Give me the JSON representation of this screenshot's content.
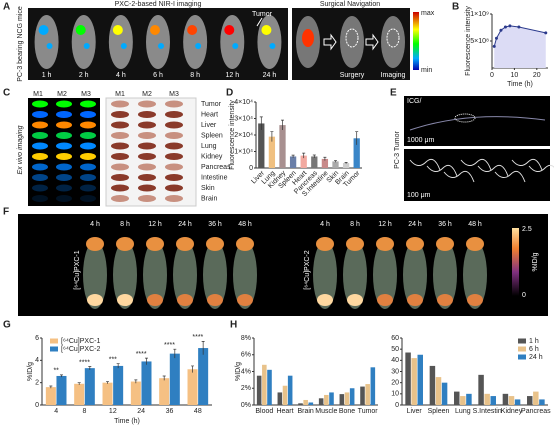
{
  "figure": {
    "panel_labels": [
      "A",
      "B",
      "C",
      "D",
      "E",
      "F",
      "G",
      "H"
    ],
    "a": {
      "title": "PXC-2-based NIR-I imaging",
      "side_label": "PC-3 bearing NCG mice",
      "times": [
        "1 h",
        "2 h",
        "4 h",
        "6 h",
        "8 h",
        "12 h",
        "24 h"
      ],
      "tumor": "Tumor",
      "nav_title": "Surgical Navigation",
      "nav_steps": [
        "Surgery",
        "Imaging"
      ],
      "scale": [
        "max",
        "min"
      ]
    },
    "c": {
      "side_label": "Ex vivo imaging",
      "mice": [
        "M1",
        "M2",
        "M3"
      ],
      "organs": [
        "Tumor",
        "Heart",
        "Liver",
        "Spleen",
        "Lung",
        "Kidney",
        "Pancreas",
        "Intestine",
        "Skin",
        "Brain"
      ]
    },
    "e": {
      "stain": "ICG/",
      "side_label": "PC-3 Tumor",
      "scales": [
        "1000 μm",
        "100 μm"
      ]
    },
    "f": {
      "probes": [
        "[⁶⁴Cu]PXC-1",
        "[⁶⁴Cu]PXC-2"
      ],
      "times": [
        "4 h",
        "8 h",
        "12 h",
        "24 h",
        "36 h",
        "48 h"
      ],
      "scale_max": "2.5",
      "scale_min": "0",
      "scale_unit": "%ID/g"
    }
  },
  "chart_data": [
    {
      "type": "line",
      "y_label": "Fluorescence intensity",
      "x_label": "Time (h)",
      "x": [
        1,
        2,
        4,
        6,
        8,
        12,
        24
      ],
      "values": [
        400000000,
        550000000,
        700000000,
        760000000,
        780000000,
        760000000,
        650000000
      ],
      "color": "#2b3a8c",
      "fill": "#dcdcf5",
      "xlim": [
        0,
        25
      ],
      "xticks": [
        0,
        10,
        20
      ],
      "ylim": [
        0,
        1000000000
      ],
      "yticks": [
        {
          "value": 500000000,
          "label": "5×10⁸"
        },
        {
          "value": 1000000000,
          "label": "1×10⁹"
        }
      ]
    },
    {
      "type": "bar",
      "y_label": "Fluorescence intensity",
      "categories": [
        "Liver",
        "Lung",
        "Kidney",
        "Spleen",
        "Heart",
        "Pancreas",
        "S.Intestine",
        "Skin",
        "Brain",
        "Tumor"
      ],
      "values": [
        27000,
        19000,
        26000,
        7000,
        7500,
        7000,
        5500,
        4000,
        3000,
        18000
      ],
      "errors": [
        4000,
        3000,
        3000,
        800,
        1500,
        900,
        1000,
        500,
        400,
        4000
      ],
      "colors": [
        "#555555",
        "#f0c080",
        "#a89090",
        "#6a7fa8",
        "#f2a9a0",
        "#777777",
        "#c88a8a",
        "#aaaaaa",
        "#cccccc",
        "#3a86c8"
      ],
      "ylim": [
        0,
        40000
      ],
      "yticks": [
        0,
        {
          "value": 10000,
          "label": "1×10⁴"
        },
        {
          "value": 20000,
          "label": "2×10⁴"
        },
        {
          "value": 30000,
          "label": "3×10⁴"
        },
        {
          "value": 40000,
          "label": "4×10⁴"
        }
      ]
    },
    {
      "type": "bar",
      "y_label": "%ID/g",
      "x_label": "Time (h)",
      "categories": [
        "4",
        "8",
        "12",
        "24",
        "36",
        "48"
      ],
      "series": [
        {
          "name": "[⁶⁴Cu]PXC-1",
          "color": "#f5c083",
          "values": [
            1.6,
            1.9,
            2.0,
            2.1,
            2.4,
            3.2
          ],
          "errors": [
            0.1,
            0.1,
            0.1,
            0.15,
            0.2,
            0.3
          ]
        },
        {
          "name": "[⁶⁴Cu]PXC-2",
          "color": "#2f7fc1",
          "values": [
            2.6,
            3.3,
            3.5,
            3.9,
            4.6,
            5.1
          ],
          "errors": [
            0.1,
            0.15,
            0.2,
            0.3,
            0.4,
            0.6
          ]
        }
      ],
      "annotations": [
        "**",
        "****",
        "***",
        "****",
        "****",
        "****"
      ],
      "ylim": [
        0,
        6
      ],
      "yticks": [
        0,
        2,
        4,
        6
      ],
      "legend": "upper-left"
    },
    {
      "type": "bar",
      "y_label": "%ID/g",
      "categories": [
        "Blood",
        "Heart",
        "Brain",
        "Muscle",
        "Bone",
        "Tumor"
      ],
      "series": [
        {
          "color": "#555555",
          "values": [
            3.5,
            1.5,
            0.2,
            0.8,
            1.3,
            2.2
          ]
        },
        {
          "color": "#e8c28a",
          "values": [
            4.8,
            2.3,
            0.6,
            1.2,
            1.5,
            2.5
          ]
        },
        {
          "color": "#2f7fc1",
          "values": [
            4.2,
            3.5,
            0.3,
            1.5,
            2.0,
            4.5
          ]
        }
      ],
      "ylim": [
        0,
        8
      ],
      "yticks": [
        {
          "value": 0,
          "label": "0%"
        },
        {
          "value": 2,
          "label": "2%"
        },
        {
          "value": 4,
          "label": "4%"
        },
        {
          "value": 6,
          "label": "6%"
        },
        {
          "value": 8,
          "label": "8%"
        }
      ]
    },
    {
      "type": "bar",
      "categories": [
        "Liver",
        "Spleen",
        "Lung",
        "S.Intestin",
        "Kidney",
        "Pancreas"
      ],
      "series": [
        {
          "name": "1 h",
          "color": "#555555",
          "values": [
            47,
            35,
            12,
            27,
            10,
            8
          ]
        },
        {
          "name": "6 h",
          "color": "#e8c28a",
          "values": [
            42,
            25,
            8,
            10,
            8,
            12
          ]
        },
        {
          "name": "24 h",
          "color": "#2f7fc1",
          "values": [
            45,
            20,
            10,
            8,
            5,
            5
          ]
        }
      ],
      "ylim": [
        0,
        60
      ],
      "yticks": [
        0,
        10,
        20,
        30,
        40,
        50,
        60
      ],
      "legend": "upper-right"
    }
  ]
}
